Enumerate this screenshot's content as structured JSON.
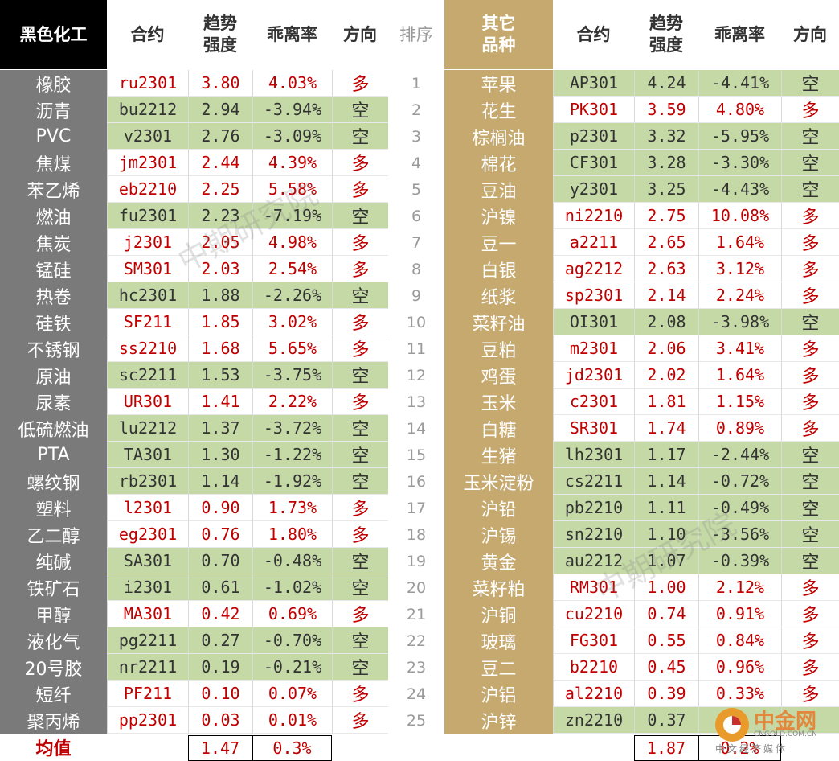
{
  "left_header": {
    "category": "黑色化工",
    "contract": "合约",
    "strength": "趋势强度",
    "deviation": "乖离率",
    "direction": "方向"
  },
  "rank_header": "排序",
  "right_header": {
    "category": "其它品种",
    "contract": "合约",
    "strength": "趋势强度",
    "deviation": "乖离率",
    "direction": "方向"
  },
  "left_rows": [
    {
      "name": "橡胶",
      "contract": "ru2301",
      "strength": "3.80",
      "deviation": "4.03%",
      "direction": "多"
    },
    {
      "name": "沥青",
      "contract": "bu2212",
      "strength": "2.94",
      "deviation": "-3.94%",
      "direction": "空"
    },
    {
      "name": "PVC",
      "contract": "v2301",
      "strength": "2.76",
      "deviation": "-3.09%",
      "direction": "空"
    },
    {
      "name": "焦煤",
      "contract": "jm2301",
      "strength": "2.44",
      "deviation": "4.39%",
      "direction": "多"
    },
    {
      "name": "苯乙烯",
      "contract": "eb2210",
      "strength": "2.25",
      "deviation": "5.58%",
      "direction": "多"
    },
    {
      "name": "燃油",
      "contract": "fu2301",
      "strength": "2.23",
      "deviation": "-7.19%",
      "direction": "空"
    },
    {
      "name": "焦炭",
      "contract": "j2301",
      "strength": "2.05",
      "deviation": "4.98%",
      "direction": "多"
    },
    {
      "name": "锰硅",
      "contract": "SM301",
      "strength": "2.03",
      "deviation": "2.54%",
      "direction": "多"
    },
    {
      "name": "热卷",
      "contract": "hc2301",
      "strength": "1.88",
      "deviation": "-2.26%",
      "direction": "空"
    },
    {
      "name": "硅铁",
      "contract": "SF211",
      "strength": "1.85",
      "deviation": "3.02%",
      "direction": "多"
    },
    {
      "name": "不锈钢",
      "contract": "ss2210",
      "strength": "1.68",
      "deviation": "5.65%",
      "direction": "多"
    },
    {
      "name": "原油",
      "contract": "sc2211",
      "strength": "1.53",
      "deviation": "-3.75%",
      "direction": "空"
    },
    {
      "name": "尿素",
      "contract": "UR301",
      "strength": "1.41",
      "deviation": "2.22%",
      "direction": "多"
    },
    {
      "name": "低硫燃油",
      "contract": "lu2212",
      "strength": "1.37",
      "deviation": "-3.72%",
      "direction": "空"
    },
    {
      "name": "PTA",
      "contract": "TA301",
      "strength": "1.30",
      "deviation": "-1.22%",
      "direction": "空"
    },
    {
      "name": "螺纹钢",
      "contract": "rb2301",
      "strength": "1.14",
      "deviation": "-1.92%",
      "direction": "空"
    },
    {
      "name": "塑料",
      "contract": "l2301",
      "strength": "0.90",
      "deviation": "1.73%",
      "direction": "多"
    },
    {
      "name": "乙二醇",
      "contract": "eg2301",
      "strength": "0.76",
      "deviation": "1.80%",
      "direction": "多"
    },
    {
      "name": "纯碱",
      "contract": "SA301",
      "strength": "0.70",
      "deviation": "-0.48%",
      "direction": "空"
    },
    {
      "name": "铁矿石",
      "contract": "i2301",
      "strength": "0.61",
      "deviation": "-1.02%",
      "direction": "空"
    },
    {
      "name": "甲醇",
      "contract": "MA301",
      "strength": "0.42",
      "deviation": "0.69%",
      "direction": "多"
    },
    {
      "name": "液化气",
      "contract": "pg2211",
      "strength": "0.27",
      "deviation": "-0.70%",
      "direction": "空"
    },
    {
      "name": "20号胶",
      "contract": "nr2211",
      "strength": "0.19",
      "deviation": "-0.21%",
      "direction": "空"
    },
    {
      "name": "短纤",
      "contract": "PF211",
      "strength": "0.10",
      "deviation": "0.07%",
      "direction": "多"
    },
    {
      "name": "聚丙烯",
      "contract": "pp2301",
      "strength": "0.03",
      "deviation": "0.01%",
      "direction": "多"
    }
  ],
  "right_rows": [
    {
      "name": "苹果",
      "contract": "AP301",
      "strength": "4.24",
      "deviation": "-4.41%",
      "direction": "空"
    },
    {
      "name": "花生",
      "contract": "PK301",
      "strength": "3.59",
      "deviation": "4.80%",
      "direction": "多"
    },
    {
      "name": "棕榈油",
      "contract": "p2301",
      "strength": "3.32",
      "deviation": "-5.95%",
      "direction": "空"
    },
    {
      "name": "棉花",
      "contract": "CF301",
      "strength": "3.28",
      "deviation": "-3.30%",
      "direction": "空"
    },
    {
      "name": "豆油",
      "contract": "y2301",
      "strength": "3.25",
      "deviation": "-4.43%",
      "direction": "空"
    },
    {
      "name": "沪镍",
      "contract": "ni2210",
      "strength": "2.75",
      "deviation": "10.08%",
      "direction": "多"
    },
    {
      "name": "豆一",
      "contract": "a2211",
      "strength": "2.65",
      "deviation": "1.64%",
      "direction": "多"
    },
    {
      "name": "白银",
      "contract": "ag2212",
      "strength": "2.63",
      "deviation": "3.12%",
      "direction": "多"
    },
    {
      "name": "纸浆",
      "contract": "sp2301",
      "strength": "2.14",
      "deviation": "2.24%",
      "direction": "多"
    },
    {
      "name": "菜籽油",
      "contract": "OI301",
      "strength": "2.08",
      "deviation": "-3.98%",
      "direction": "空"
    },
    {
      "name": "豆粕",
      "contract": "m2301",
      "strength": "2.06",
      "deviation": "3.41%",
      "direction": "多"
    },
    {
      "name": "鸡蛋",
      "contract": "jd2301",
      "strength": "2.02",
      "deviation": "1.64%",
      "direction": "多"
    },
    {
      "name": "玉米",
      "contract": "c2301",
      "strength": "1.81",
      "deviation": "1.15%",
      "direction": "多"
    },
    {
      "name": "白糖",
      "contract": "SR301",
      "strength": "1.74",
      "deviation": "0.89%",
      "direction": "多"
    },
    {
      "name": "生猪",
      "contract": "lh2301",
      "strength": "1.17",
      "deviation": "-2.44%",
      "direction": "空"
    },
    {
      "name": "玉米淀粉",
      "contract": "cs2211",
      "strength": "1.14",
      "deviation": "-0.72%",
      "direction": "空"
    },
    {
      "name": "沪铅",
      "contract": "pb2210",
      "strength": "1.11",
      "deviation": "-0.49%",
      "direction": "空"
    },
    {
      "name": "沪锡",
      "contract": "sn2210",
      "strength": "1.10",
      "deviation": "-3.56%",
      "direction": "空"
    },
    {
      "name": "黄金",
      "contract": "au2212",
      "strength": "1.07",
      "deviation": "-0.39%",
      "direction": "空"
    },
    {
      "name": "菜籽粕",
      "contract": "RM301",
      "strength": "1.00",
      "deviation": "2.12%",
      "direction": "多"
    },
    {
      "name": "沪铜",
      "contract": "cu2210",
      "strength": "0.74",
      "deviation": "0.91%",
      "direction": "多"
    },
    {
      "name": "玻璃",
      "contract": "FG301",
      "strength": "0.55",
      "deviation": "0.84%",
      "direction": "多"
    },
    {
      "name": "豆二",
      "contract": "b2210",
      "strength": "0.45",
      "deviation": "0.96%",
      "direction": "多"
    },
    {
      "name": "沪铝",
      "contract": "al2210",
      "strength": "0.39",
      "deviation": "0.33%",
      "direction": "多"
    },
    {
      "name": "沪锌",
      "contract": "zn2210",
      "strength": "0.37",
      "deviation": "",
      "direction": ""
    }
  ],
  "ranks": [
    "1",
    "2",
    "3",
    "4",
    "5",
    "6",
    "7",
    "8",
    "9",
    "10",
    "11",
    "12",
    "13",
    "14",
    "15",
    "16",
    "17",
    "18",
    "19",
    "20",
    "21",
    "22",
    "23",
    "24",
    "25"
  ],
  "average": {
    "label": "均值",
    "left_strength": "1.47",
    "left_deviation": "0.3%",
    "right_strength": "1.87",
    "right_deviation": "0.2%"
  },
  "watermark": "中期研究院",
  "logo": {
    "name": "中金网",
    "sub": "CNGOLD.COM.CN",
    "tagline": "中文经济媒体"
  },
  "colors": {
    "short_bg": "#c5d9a6",
    "long_bg": "#ffffff",
    "left_category_bg": "#7a7a7a",
    "right_category_bg": "#c6a96e",
    "red_text": "#c00000"
  }
}
